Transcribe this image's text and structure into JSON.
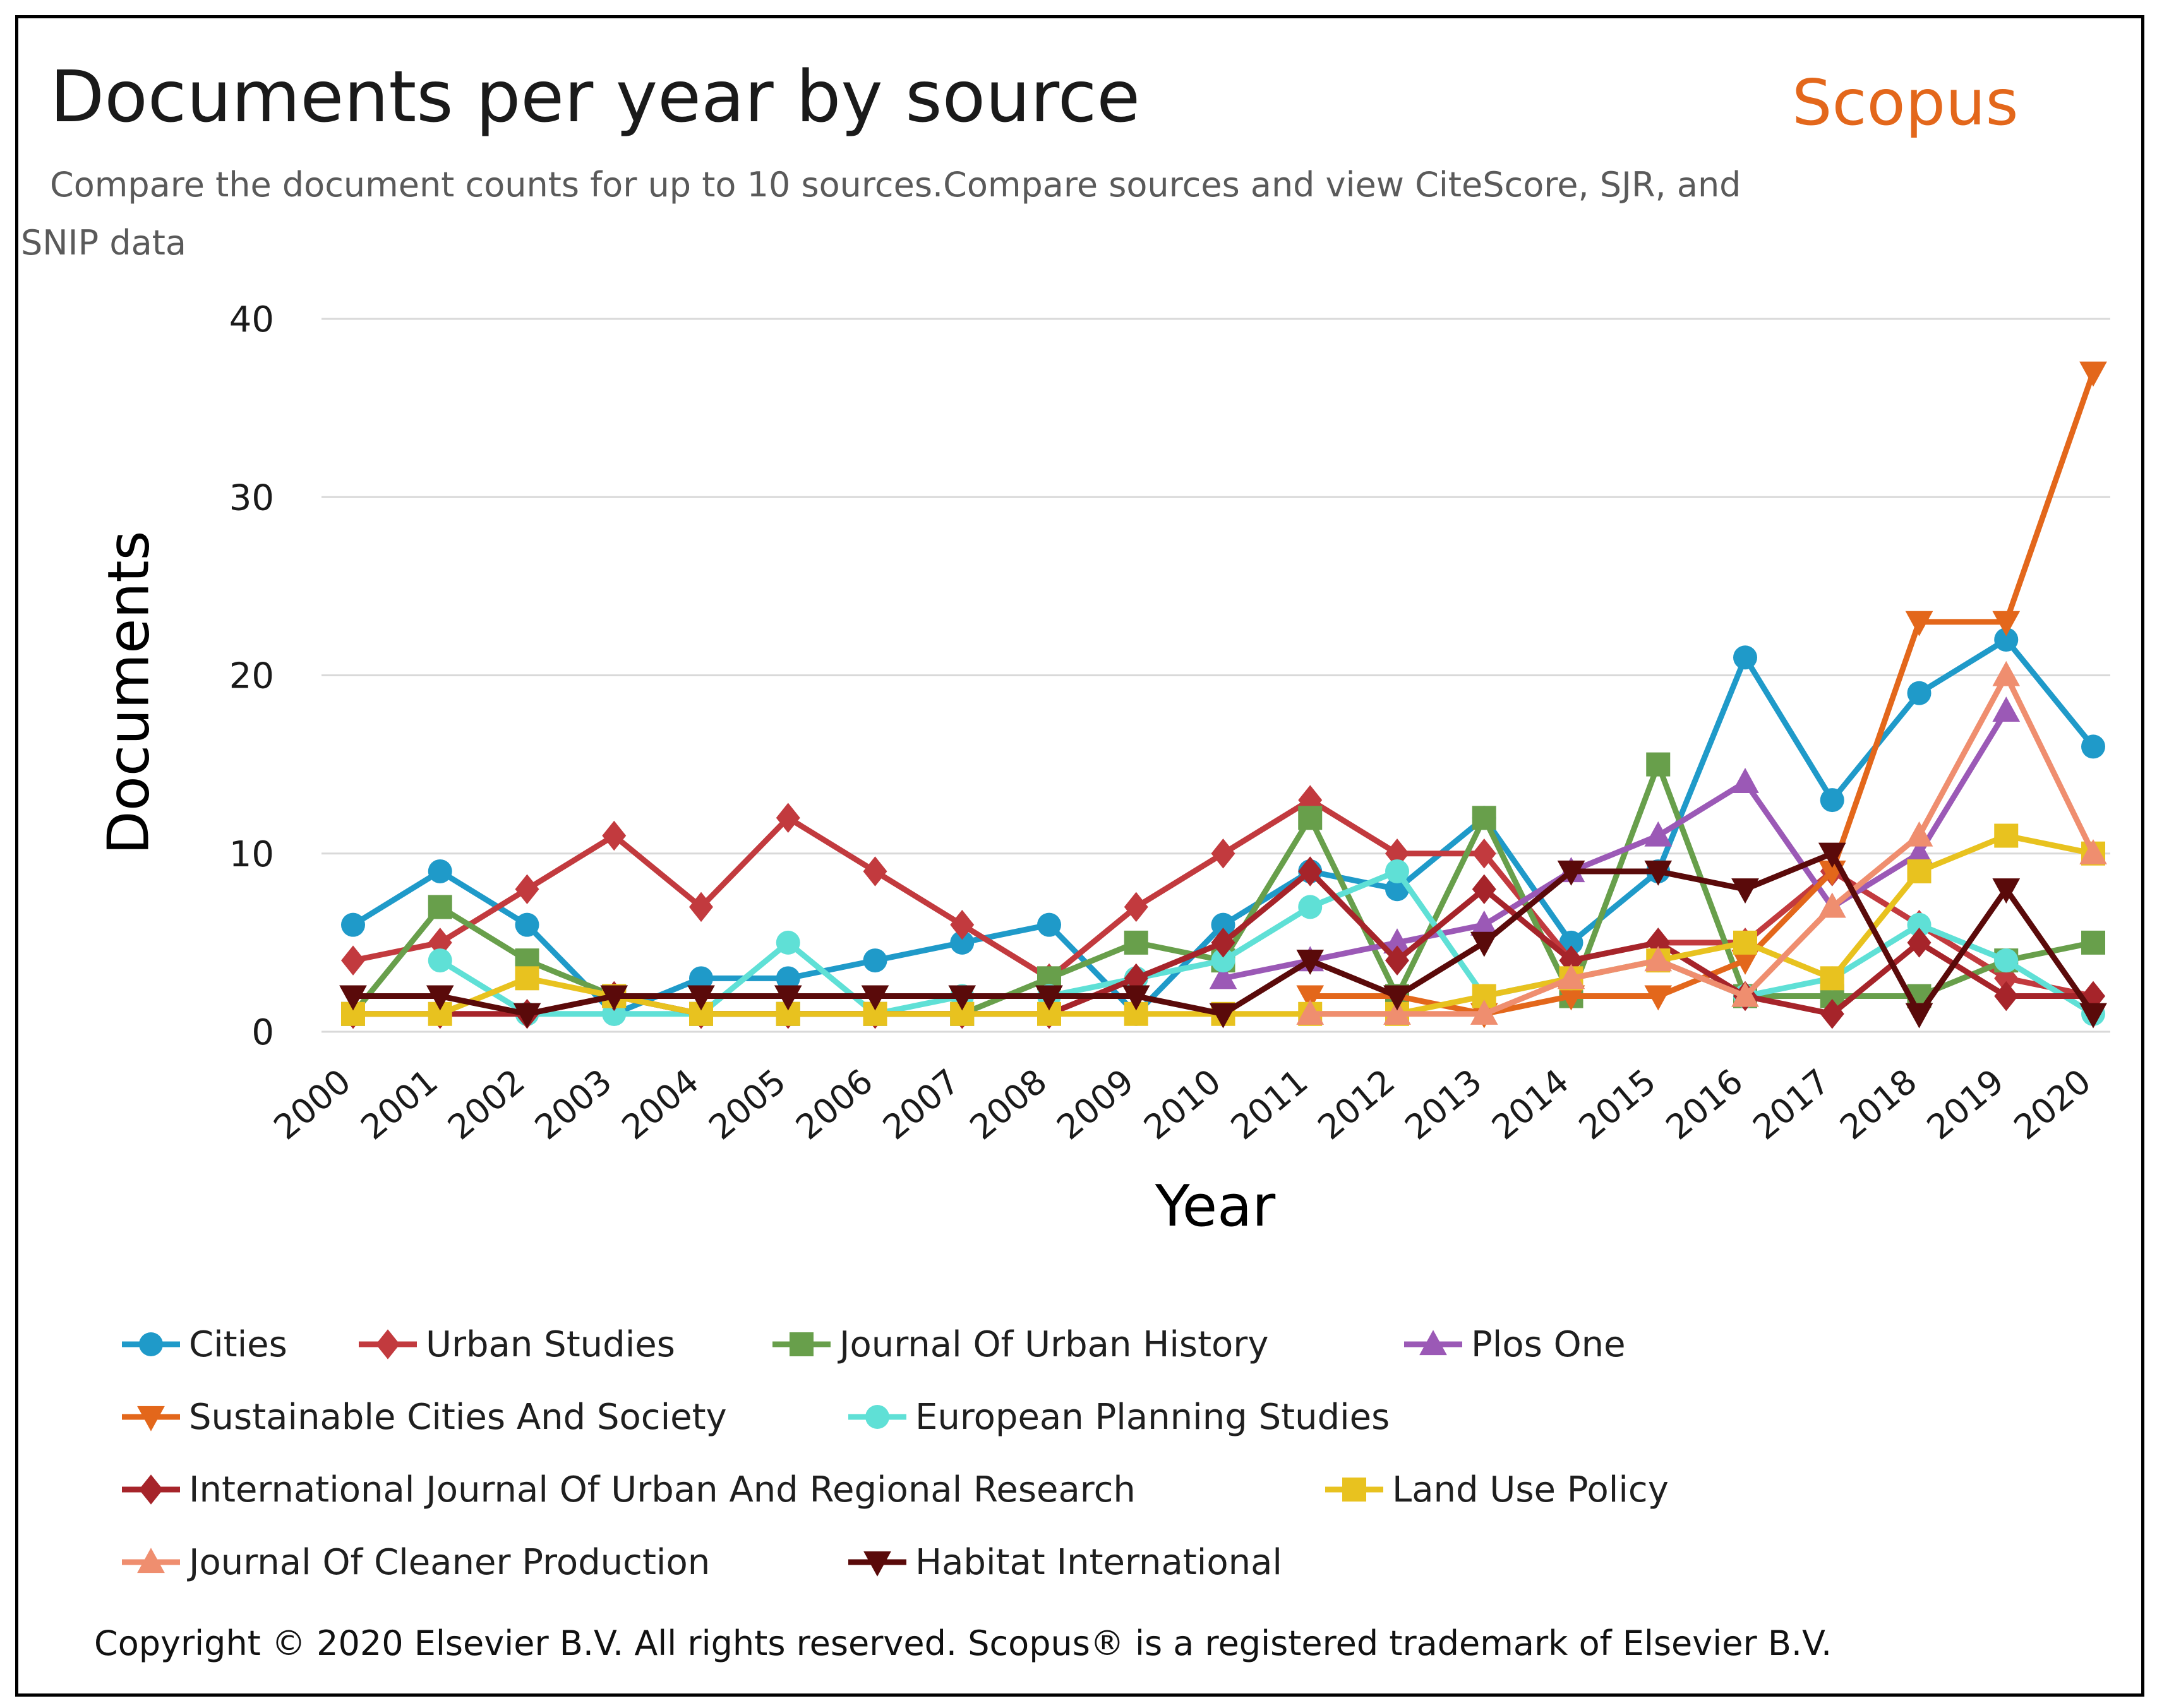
{
  "title": "Documents per year by source",
  "brand": "Scopus",
  "subtitle": "Compare the document counts for up to 10 sources.Compare sources and view CiteScore, SJR, and SNIP data",
  "copyright": "Copyright © 2020 Elsevier B.V. All rights reserved. Scopus® is a registered trademark of Elsevier B.V.",
  "chart_data": {
    "type": "line",
    "title": "Documents per year by source",
    "xlabel": "Year",
    "ylabel": "Documents",
    "ylim": [
      0,
      40
    ],
    "yticks": [
      0,
      10,
      20,
      30,
      40
    ],
    "grid": true,
    "legend_position": "bottom",
    "categories": [
      "2000",
      "2001",
      "2002",
      "2003",
      "2004",
      "2005",
      "2006",
      "2007",
      "2008",
      "2009",
      "2010",
      "2011",
      "2012",
      "2013",
      "2014",
      "2015",
      "2016",
      "2017",
      "2018",
      "2019",
      "2020"
    ],
    "series": [
      {
        "name": "Cities",
        "color": "#1f9ac9",
        "marker": "circle",
        "values": [
          6,
          9,
          6,
          1,
          3,
          3,
          4,
          5,
          6,
          1,
          6,
          9,
          8,
          12,
          5,
          9,
          21,
          13,
          19,
          22,
          16
        ]
      },
      {
        "name": "Urban Studies",
        "color": "#c23a3e",
        "marker": "diamond",
        "values": [
          4,
          5,
          8,
          11,
          7,
          12,
          9,
          6,
          3,
          7,
          10,
          13,
          10,
          10,
          4,
          5,
          5,
          9,
          6,
          3,
          2
        ]
      },
      {
        "name": "Journal Of Urban History",
        "color": "#689f4b",
        "marker": "square",
        "values": [
          1,
          7,
          4,
          2,
          1,
          1,
          1,
          1,
          3,
          5,
          4,
          12,
          2,
          12,
          2,
          15,
          2,
          2,
          2,
          4,
          5
        ]
      },
      {
        "name": "Plos One",
        "color": "#9b59b6",
        "marker": "triangle-up",
        "values": [
          null,
          null,
          null,
          null,
          null,
          null,
          null,
          null,
          null,
          null,
          3,
          4,
          5,
          6,
          9,
          11,
          14,
          7,
          10,
          18,
          null
        ]
      },
      {
        "name": "Sustainable Cities And Society",
        "color": "#e3671b",
        "marker": "triangle-down",
        "values": [
          null,
          null,
          null,
          null,
          null,
          null,
          null,
          null,
          null,
          null,
          null,
          2,
          2,
          1,
          2,
          2,
          4,
          9,
          23,
          23,
          37
        ]
      },
      {
        "name": "European Planning Studies",
        "color": "#5fe0d6",
        "marker": "circle",
        "values": [
          null,
          4,
          1,
          1,
          1,
          5,
          1,
          2,
          2,
          3,
          4,
          7,
          9,
          2,
          3,
          4,
          2,
          3,
          6,
          4,
          1
        ]
      },
      {
        "name": "International Journal Of Urban And Regional Research",
        "color": "#a6242a",
        "marker": "diamond",
        "values": [
          1,
          1,
          1,
          2,
          1,
          1,
          1,
          1,
          1,
          3,
          5,
          9,
          4,
          8,
          4,
          5,
          2,
          1,
          5,
          2,
          2
        ]
      },
      {
        "name": "Land Use Policy",
        "color": "#e8c21f",
        "marker": "square",
        "values": [
          1,
          1,
          3,
          2,
          1,
          1,
          1,
          1,
          1,
          1,
          1,
          1,
          1,
          2,
          3,
          4,
          5,
          3,
          9,
          11,
          10
        ]
      },
      {
        "name": "Journal Of Cleaner Production",
        "color": "#ef8e6f",
        "marker": "triangle-up",
        "values": [
          null,
          null,
          null,
          null,
          null,
          null,
          null,
          null,
          null,
          null,
          null,
          1,
          1,
          1,
          3,
          4,
          2,
          7,
          11,
          20,
          10
        ]
      },
      {
        "name": "Habitat International",
        "color": "#5a0a0a",
        "marker": "triangle-down",
        "values": [
          2,
          2,
          1,
          2,
          2,
          2,
          2,
          2,
          2,
          2,
          1,
          4,
          2,
          5,
          9,
          9,
          8,
          10,
          1,
          8,
          1
        ]
      }
    ]
  }
}
